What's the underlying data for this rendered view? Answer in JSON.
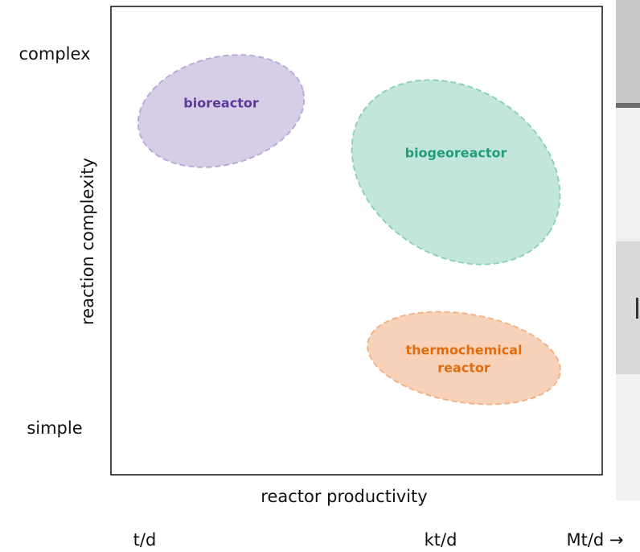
{
  "y_axis": {
    "label": "reaction complexity",
    "high": "complex",
    "low": "simple"
  },
  "x_axis": {
    "label": "reactor productivity",
    "ticks": [
      "t/d",
      "kt/d",
      "Mt/d →"
    ]
  },
  "regions": [
    {
      "lines": [
        "bioreactor"
      ]
    },
    {
      "lines": [
        "biogeoreactor"
      ]
    },
    {
      "lines": [
        "thermochemical",
        "reactor"
      ]
    }
  ]
}
